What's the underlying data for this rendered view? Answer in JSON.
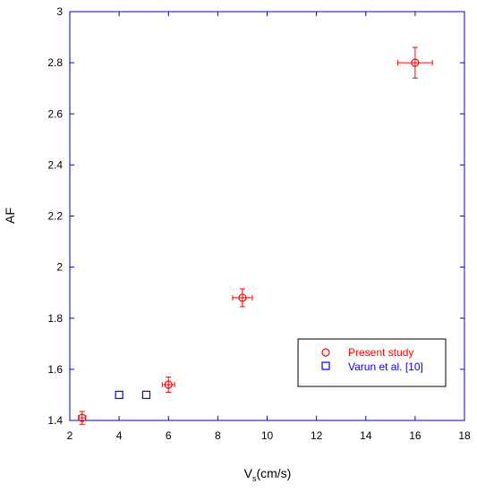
{
  "chart_data": {
    "type": "scatter",
    "xlabel": {
      "main": "V",
      "sub": "s",
      "rest": "(cm/s)"
    },
    "ylabel": "AF",
    "xlim": [
      2,
      18
    ],
    "ylim": [
      1.4,
      3.0
    ],
    "xticks": [
      "2",
      "4",
      "6",
      "8",
      "10",
      "12",
      "14",
      "16",
      "18"
    ],
    "yticks": [
      "1.4",
      "1.6",
      "1.8",
      "2",
      "2.2",
      "2.4",
      "2.6",
      "2.8",
      "3"
    ],
    "grid": false,
    "legend_position": "bottom-right",
    "series": [
      {
        "name": "Present study",
        "marker": "circle",
        "color": "#ff0000",
        "points": [
          {
            "x": 2.5,
            "y": 1.41,
            "xerr": 0.15,
            "yerr": 0.025
          },
          {
            "x": 6.0,
            "y": 1.54,
            "xerr": 0.25,
            "yerr": 0.03
          },
          {
            "x": 9.0,
            "y": 1.88,
            "xerr": 0.4,
            "yerr": 0.035
          },
          {
            "x": 16.0,
            "y": 2.8,
            "xerr": 0.7,
            "yerr": 0.06
          }
        ]
      },
      {
        "name": "Varun et al. [10]",
        "marker": "square",
        "color": "#0000ff",
        "points": [
          {
            "x": 4.0,
            "y": 1.5
          },
          {
            "x": 5.1,
            "y": 1.5
          }
        ]
      }
    ]
  },
  "colors": {
    "axis": "#0000cc",
    "present": "#ff0000",
    "varun": "#0000ff"
  }
}
